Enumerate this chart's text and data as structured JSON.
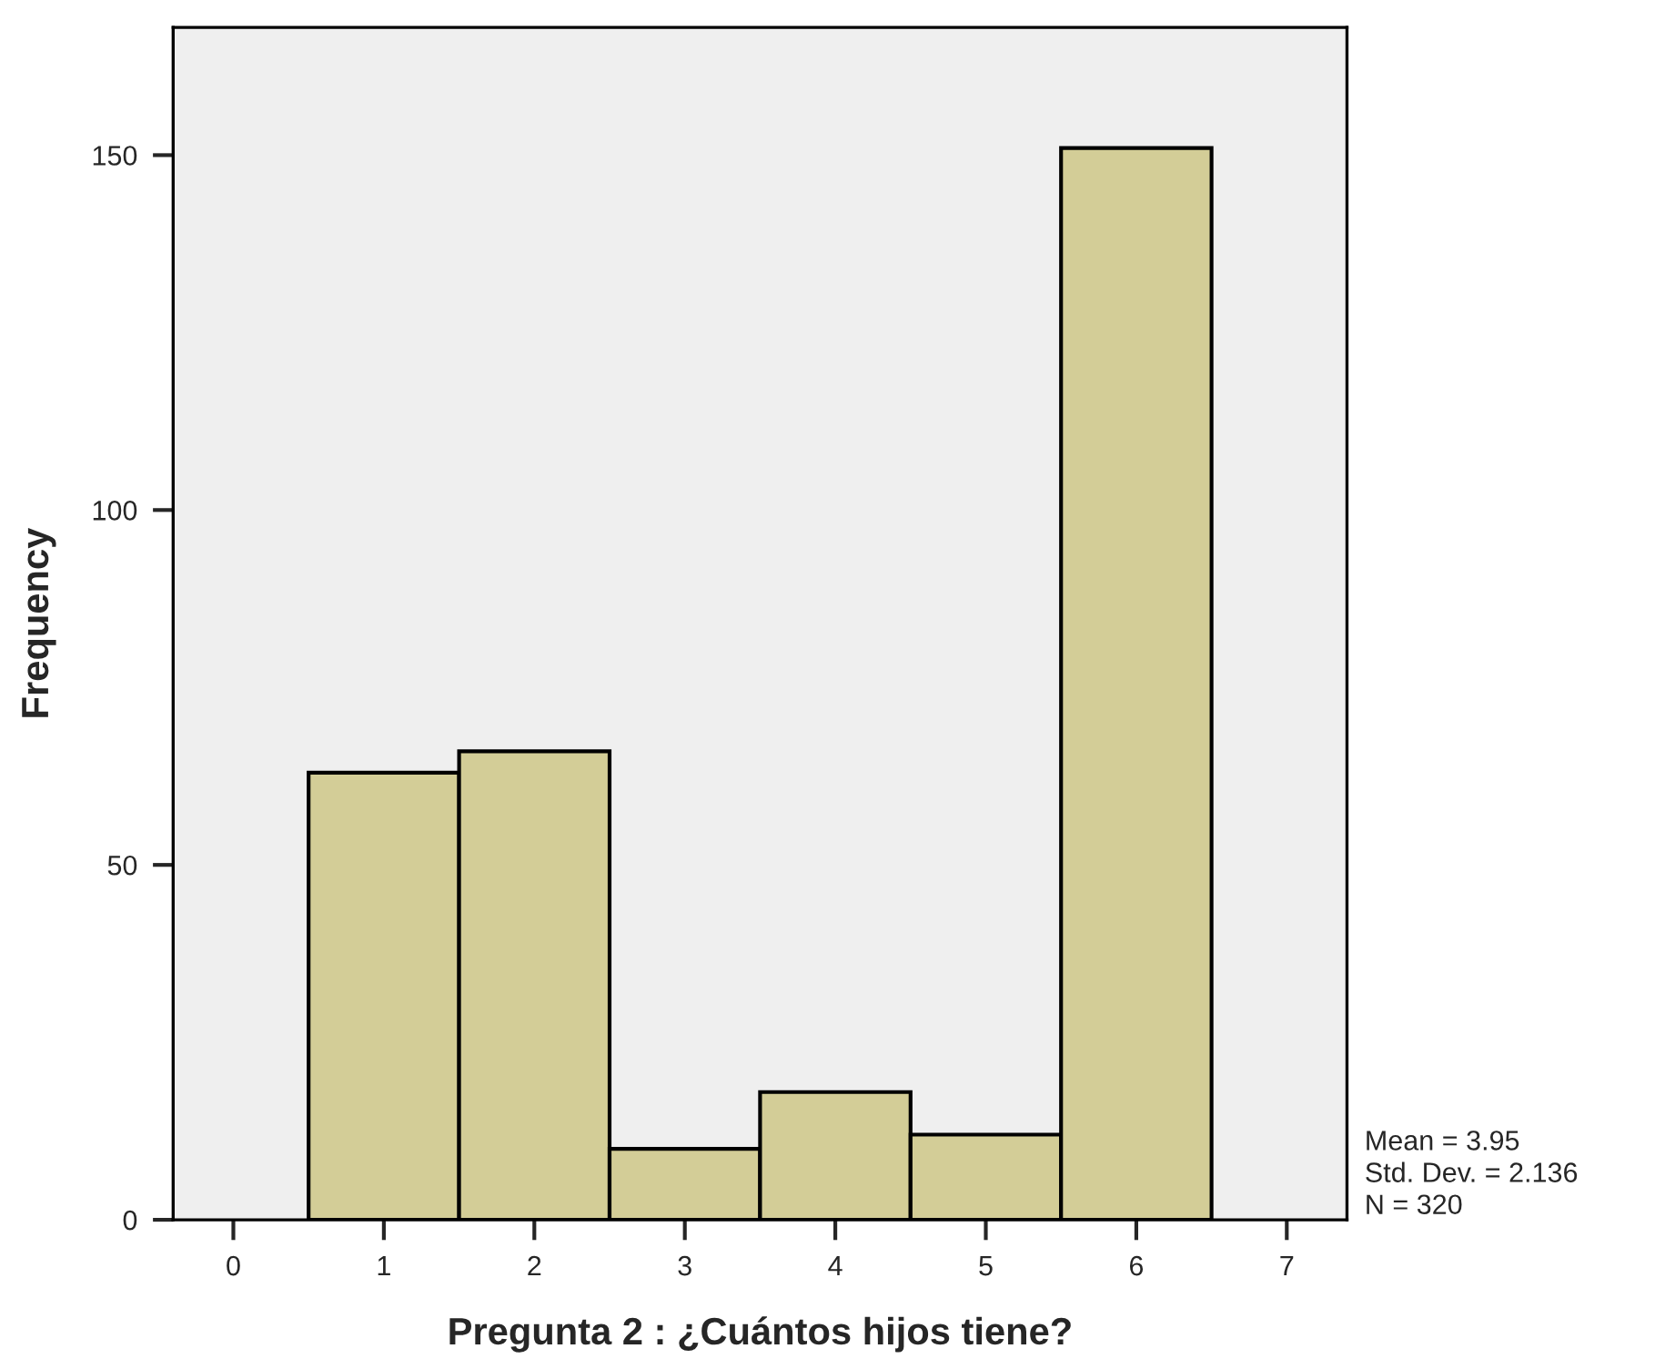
{
  "chart_data": {
    "type": "histogram",
    "xlabel": "Pregunta 2 : ¿Cuántos hijos tiene?",
    "ylabel": "Frequency",
    "bins": [
      0.5,
      1.5,
      2.5,
      3.5,
      4.5,
      5.5,
      6.5
    ],
    "values": [
      63,
      66,
      10,
      18,
      12,
      151
    ],
    "color": "#d3cd97",
    "xlim": [
      -0.4,
      7.4
    ],
    "xticks": [
      0,
      1,
      2,
      3,
      4,
      5,
      6,
      7
    ],
    "ylim": [
      0,
      168
    ],
    "yticks": [
      0,
      50,
      100,
      150
    ],
    "annotations": [
      "Mean = 3.95\nStd. Dev. = 2.136\nN = 320"
    ]
  }
}
